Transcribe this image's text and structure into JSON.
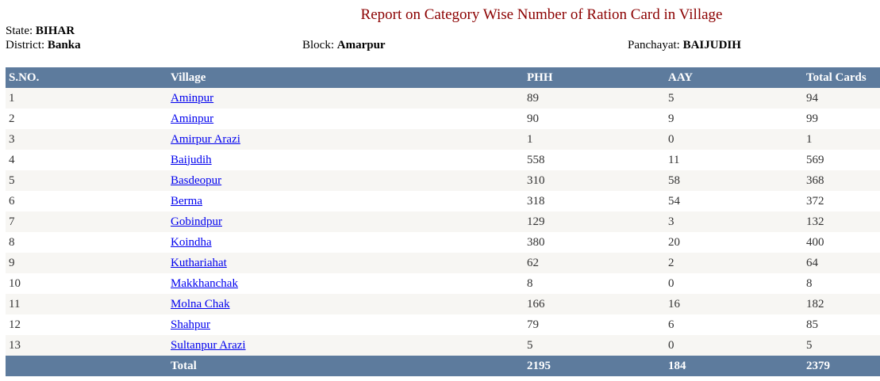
{
  "title": "Report on Category Wise Number of Ration Card in Village",
  "header": {
    "state_label": "State:",
    "state": "BIHAR",
    "district_label": "District:",
    "district": "Banka",
    "block_label": "Block:",
    "block": "Amarpur",
    "panchayat_label": "Panchayat:",
    "panchayat": "BAIJUDIH"
  },
  "columns": [
    "S.NO.",
    "Village",
    "PHH",
    "AAY",
    "Total Cards"
  ],
  "rows": [
    {
      "sno": "1",
      "village": "Aminpur",
      "phh": "89",
      "aay": "5",
      "total": "94"
    },
    {
      "sno": "2",
      "village": "Aminpur",
      "phh": "90",
      "aay": "9",
      "total": "99"
    },
    {
      "sno": "3",
      "village": "Amirpur Arazi",
      "phh": "1",
      "aay": "0",
      "total": "1"
    },
    {
      "sno": "4",
      "village": "Baijudih",
      "phh": "558",
      "aay": "11",
      "total": "569"
    },
    {
      "sno": "5",
      "village": "Basdeopur",
      "phh": "310",
      "aay": "58",
      "total": "368"
    },
    {
      "sno": "6",
      "village": "Berma",
      "phh": "318",
      "aay": "54",
      "total": "372"
    },
    {
      "sno": "7",
      "village": "Gobindpur",
      "phh": "129",
      "aay": "3",
      "total": "132"
    },
    {
      "sno": "8",
      "village": "Koindha",
      "phh": "380",
      "aay": "20",
      "total": "400"
    },
    {
      "sno": "9",
      "village": "Kuthariahat",
      "phh": "62",
      "aay": "2",
      "total": "64"
    },
    {
      "sno": "10",
      "village": "Makkhanchak",
      "phh": "8",
      "aay": "0",
      "total": "8"
    },
    {
      "sno": "11",
      "village": "Molna Chak",
      "phh": "166",
      "aay": "16",
      "total": "182"
    },
    {
      "sno": "12",
      "village": "Shahpur",
      "phh": "79",
      "aay": "6",
      "total": "85"
    },
    {
      "sno": "13",
      "village": "Sultanpur Arazi",
      "phh": "5",
      "aay": "0",
      "total": "5"
    }
  ],
  "footer": {
    "label": "Total",
    "phh": "2195",
    "aay": "184",
    "total": "2379"
  },
  "colors": {
    "header_bg": "#5d7b9d",
    "title": "#8b0000",
    "link": "#0000ee",
    "row_alt": "#f7f6f3"
  }
}
